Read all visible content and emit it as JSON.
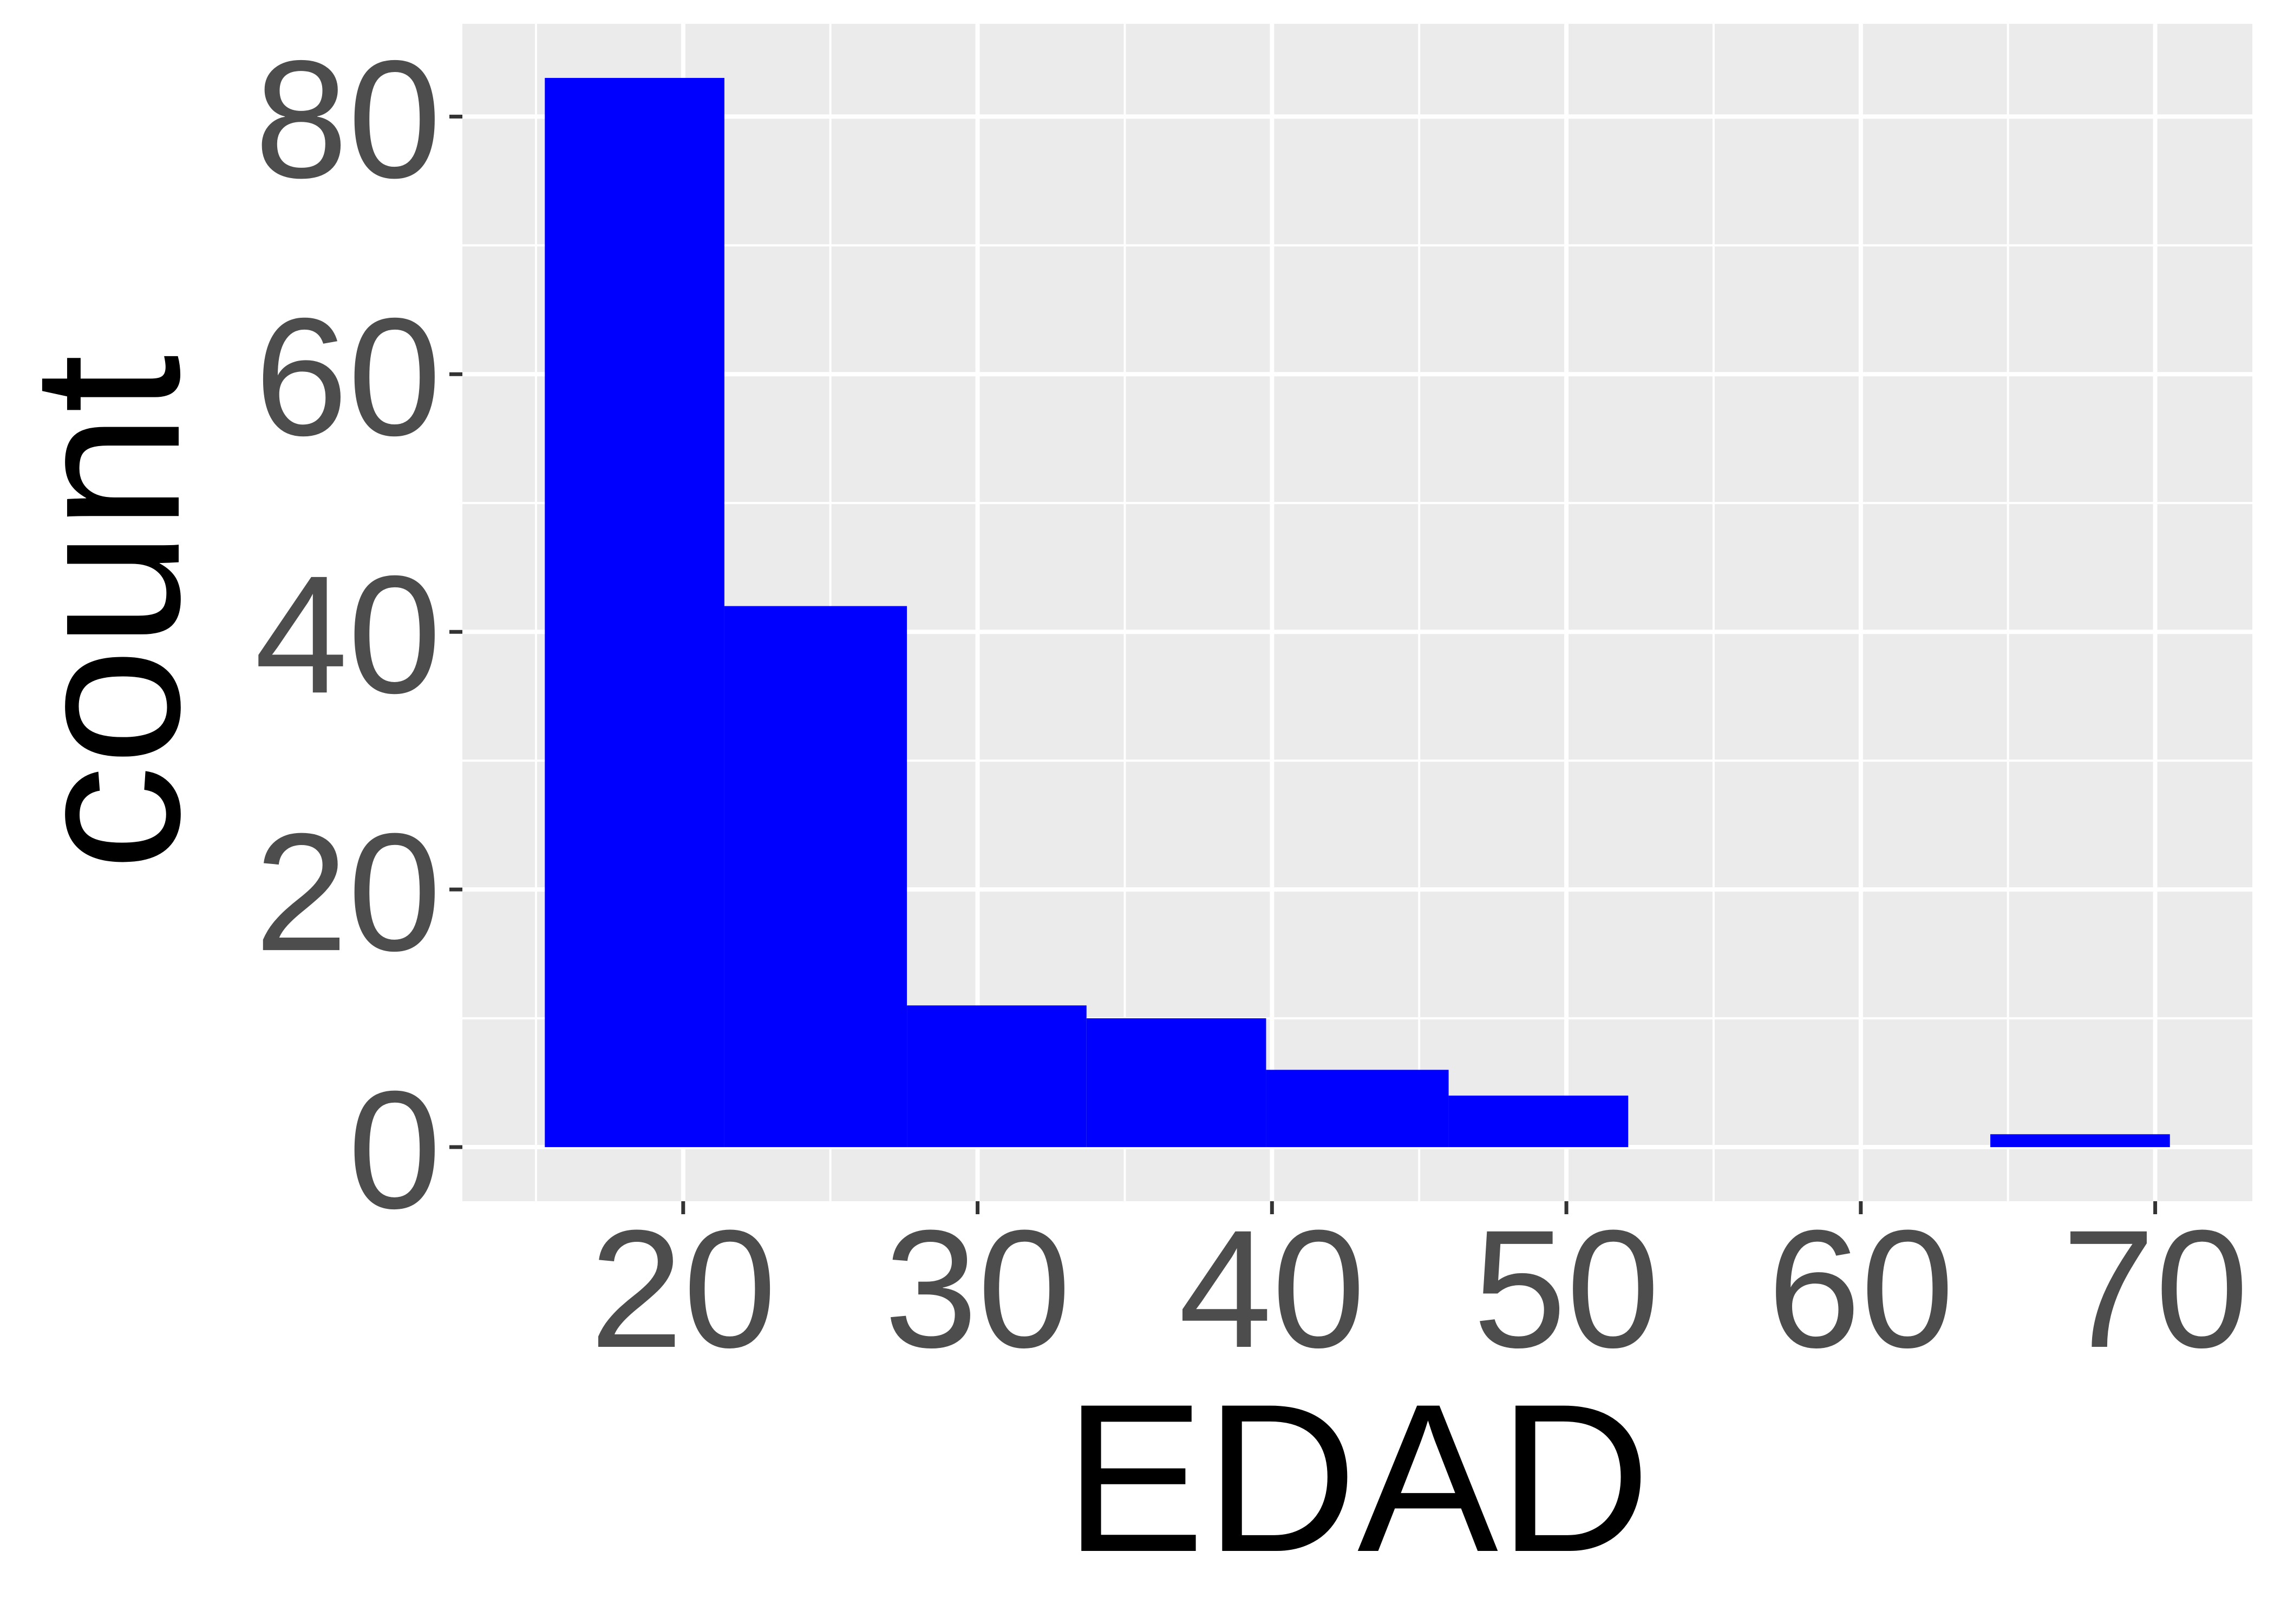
{
  "chart_data": {
    "type": "bar",
    "xlabel": "EDAD",
    "ylabel": "count",
    "xlim": [
      12.5,
      73.3
    ],
    "ylim": [
      -4.2,
      87.2
    ],
    "x_ticks": [
      20,
      30,
      40,
      50,
      60,
      70
    ],
    "y_ticks": [
      0,
      20,
      40,
      60,
      80
    ],
    "x_tick_labels": [
      "20",
      "30",
      "40",
      "50",
      "60",
      "70"
    ],
    "y_tick_labels": [
      "0",
      "20",
      "40",
      "60",
      "80"
    ],
    "bins": [
      {
        "x0": 15.3,
        "x1": 21.4,
        "count": 83
      },
      {
        "x0": 21.4,
        "x1": 27.6,
        "count": 42
      },
      {
        "x0": 27.6,
        "x1": 33.7,
        "count": 11
      },
      {
        "x0": 33.7,
        "x1": 39.8,
        "count": 10
      },
      {
        "x0": 39.8,
        "x1": 46.0,
        "count": 6
      },
      {
        "x0": 46.0,
        "x1": 52.1,
        "count": 4
      },
      {
        "x0": 52.1,
        "x1": 58.2,
        "count": 0
      },
      {
        "x0": 58.2,
        "x1": 64.4,
        "count": 0
      },
      {
        "x0": 64.4,
        "x1": 70.5,
        "count": 1
      }
    ],
    "grid": true,
    "colors": {
      "bar": "#0000ff",
      "panel": "#ebebeb",
      "grid": "#ffffff",
      "tick_text": "#4d4d4d",
      "title_text": "#000000"
    }
  }
}
